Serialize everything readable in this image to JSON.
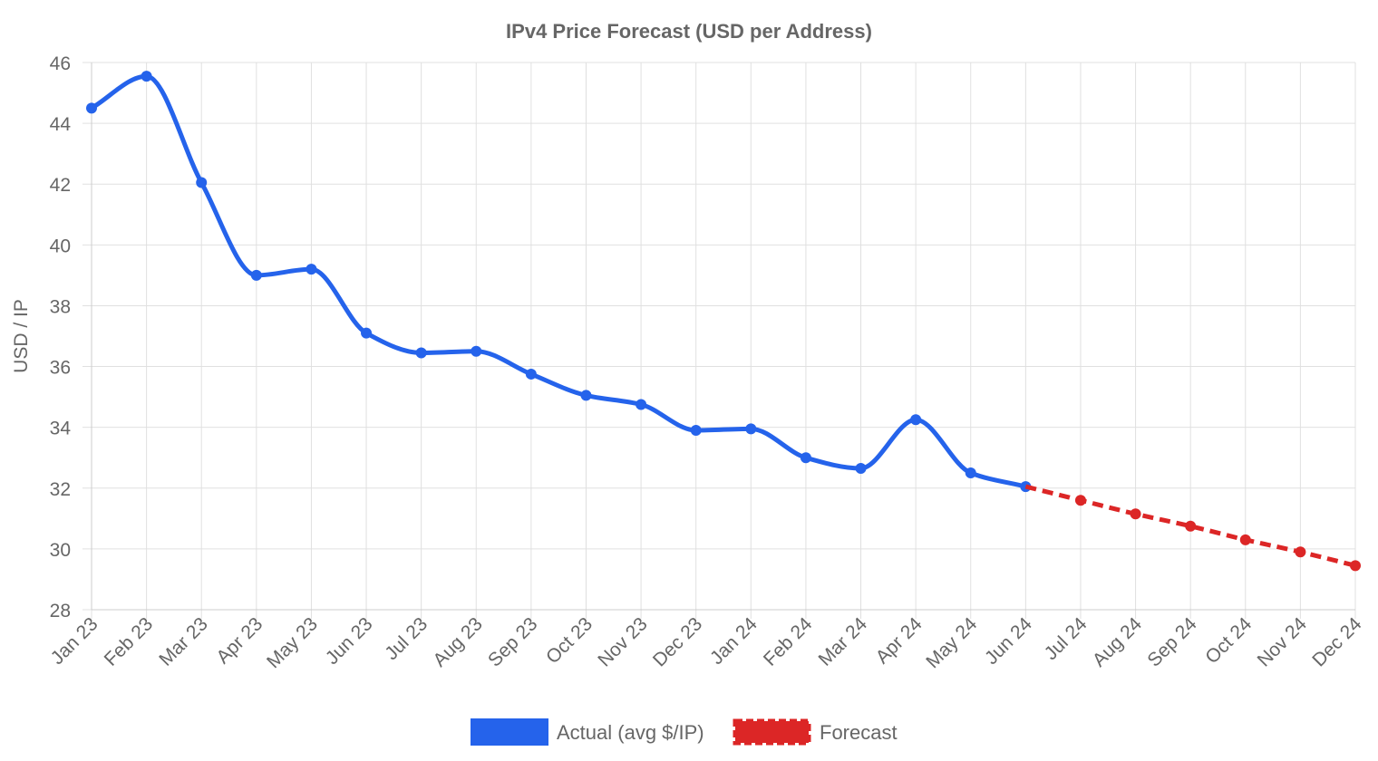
{
  "chart_data": {
    "type": "line",
    "title": "IPv4 Price Forecast (USD per Address)",
    "xlabel": "",
    "ylabel": "USD / IP",
    "ylim": [
      28,
      46
    ],
    "yticks": [
      "28",
      "30",
      "32",
      "34",
      "36",
      "38",
      "40",
      "42",
      "44",
      "46"
    ],
    "grid": true,
    "legend_position": "bottom",
    "categories": [
      "Jan 23",
      "Feb 23",
      "Mar 23",
      "Apr 23",
      "May 23",
      "Jun 23",
      "Jul 23",
      "Aug 23",
      "Sep 23",
      "Oct 23",
      "Nov 23",
      "Dec 23",
      "Jan 24",
      "Feb 24",
      "Mar 24",
      "Apr 24",
      "May 24",
      "Jun 24",
      "Jul 24",
      "Aug 24",
      "Sep 24",
      "Oct 24",
      "Nov 24",
      "Dec 24"
    ],
    "series": [
      {
        "name": "Actual (avg $/IP)",
        "color": "#2563eb",
        "style": "solid",
        "values": [
          44.5,
          45.55,
          42.05,
          39.0,
          39.2,
          37.1,
          36.45,
          36.5,
          35.75,
          35.05,
          34.75,
          33.9,
          33.95,
          33.0,
          32.65,
          34.25,
          32.5,
          32.05,
          null,
          null,
          null,
          null,
          null,
          null
        ]
      },
      {
        "name": "Forecast",
        "color": "#dc2626",
        "style": "dashed",
        "values": [
          null,
          null,
          null,
          null,
          null,
          null,
          null,
          null,
          null,
          null,
          null,
          null,
          null,
          null,
          null,
          null,
          null,
          32.05,
          31.6,
          31.15,
          30.75,
          30.3,
          29.9,
          29.45
        ]
      }
    ]
  }
}
